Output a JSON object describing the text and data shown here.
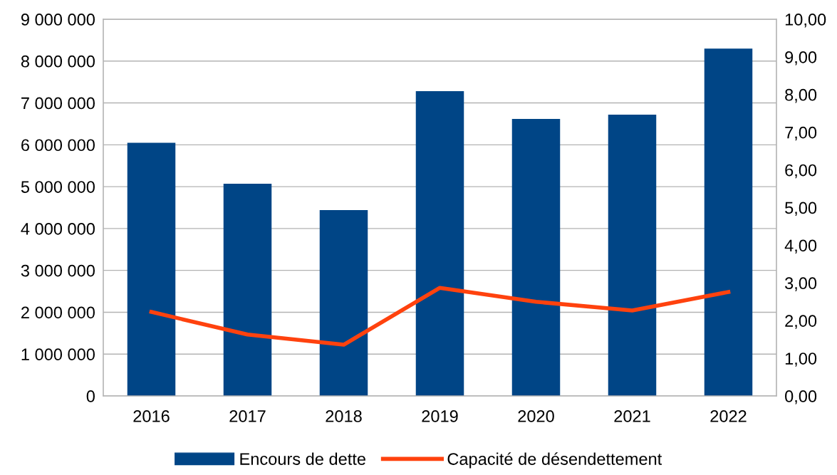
{
  "chart_data": {
    "type": "bar",
    "categories": [
      "2016",
      "2017",
      "2018",
      "2019",
      "2020",
      "2021",
      "2022"
    ],
    "series": [
      {
        "name": "Encours de dette",
        "color": "#004586",
        "values": [
          6050000,
          5070000,
          4440000,
          7280000,
          6620000,
          6720000,
          8300000
        ]
      },
      {
        "name": "Capacité de désendettement",
        "color": "#ff420e",
        "type": "line",
        "axis": "y2",
        "values": [
          2.23,
          1.63,
          1.36,
          2.87,
          2.5,
          2.27,
          2.76
        ]
      }
    ],
    "ylim": [
      0,
      9000000
    ],
    "yticks": [
      0,
      {
        "value": 1000000,
        "label": "1 000 000"
      },
      {
        "value": 2000000,
        "label": "2 000 000"
      },
      {
        "value": 3000000,
        "label": "3 000 000"
      },
      {
        "value": 4000000,
        "label": "4 000 000"
      },
      {
        "value": 5000000,
        "label": "5 000 000"
      },
      {
        "value": 6000000,
        "label": "6 000 000"
      },
      {
        "value": 7000000,
        "label": "7 000 000"
      },
      {
        "value": 8000000,
        "label": "8 000 000"
      },
      {
        "value": 9000000,
        "label": "9 000 000"
      }
    ],
    "y2lim": [
      0,
      10
    ],
    "y2ticks": [
      {
        "value": 0,
        "label": "0,00"
      },
      {
        "value": 1,
        "label": "1,00"
      },
      {
        "value": 2,
        "label": "2,00"
      },
      {
        "value": 3,
        "label": "3,00"
      },
      {
        "value": 4,
        "label": "4,00"
      },
      {
        "value": 5,
        "label": "5,00"
      },
      {
        "value": 6,
        "label": "6,00"
      },
      {
        "value": 7,
        "label": "7,00"
      },
      {
        "value": 8,
        "label": "8,00"
      },
      {
        "value": 9,
        "label": "9,00"
      },
      {
        "value": 10,
        "label": "10,00"
      }
    ],
    "grid": "y",
    "legend": "bottom",
    "marker": "none"
  }
}
